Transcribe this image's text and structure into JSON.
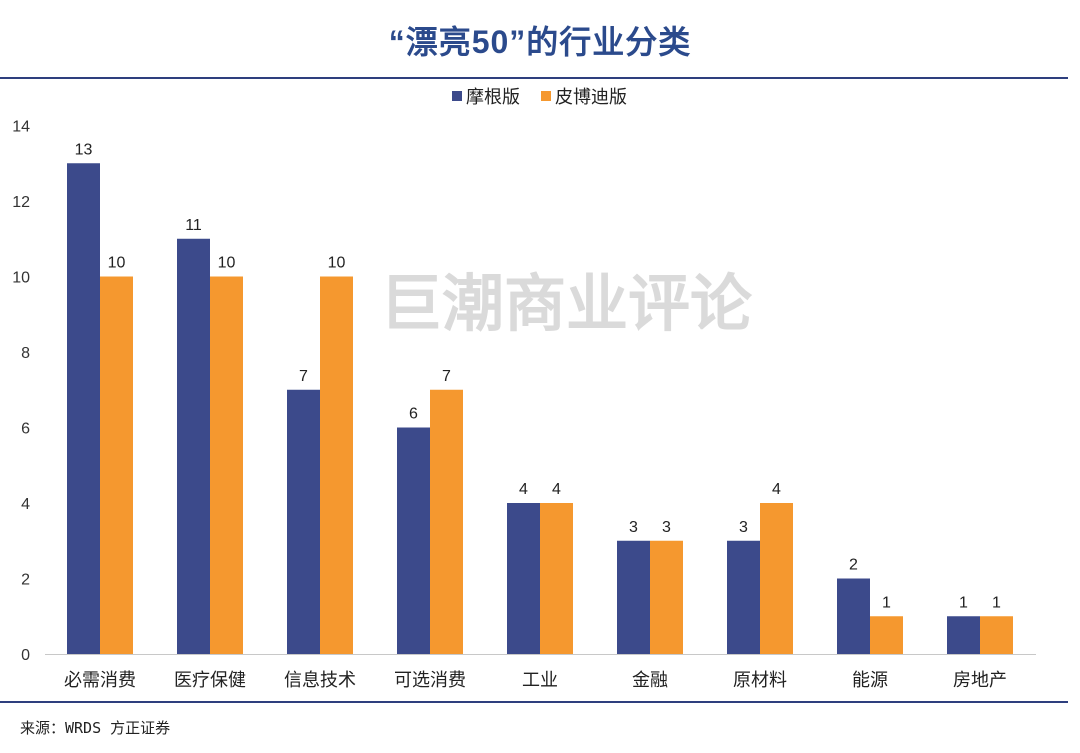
{
  "chart_data": {
    "type": "bar",
    "title": "“漂亮50”的行业分类",
    "xlabel": "",
    "ylabel": "",
    "categories": [
      "必需消费",
      "医疗保健",
      "信息技术",
      "可选消费",
      "工业",
      "金融",
      "原材料",
      "能源",
      "房地产"
    ],
    "series": [
      {
        "name": "摩根版",
        "color": "#3c4a8b",
        "values": [
          13,
          11,
          7,
          6,
          4,
          3,
          3,
          2,
          1
        ]
      },
      {
        "name": "皮博迪版",
        "color": "#f5982f",
        "values": [
          10,
          10,
          10,
          7,
          4,
          3,
          4,
          1,
          1
        ]
      }
    ],
    "ylim": [
      0,
      14
    ],
    "yticks": [
      0,
      2,
      4,
      6,
      8,
      10,
      12,
      14
    ],
    "grid": false,
    "legend": "top-center",
    "data_labels": true
  },
  "watermark": "巨潮商业评论",
  "source": "来源：WRDS 方正证券",
  "colors": {
    "title": "#2b4a8c",
    "rule": "#2e3f7e",
    "axis": "#c8c8c8",
    "text": "#222222"
  }
}
